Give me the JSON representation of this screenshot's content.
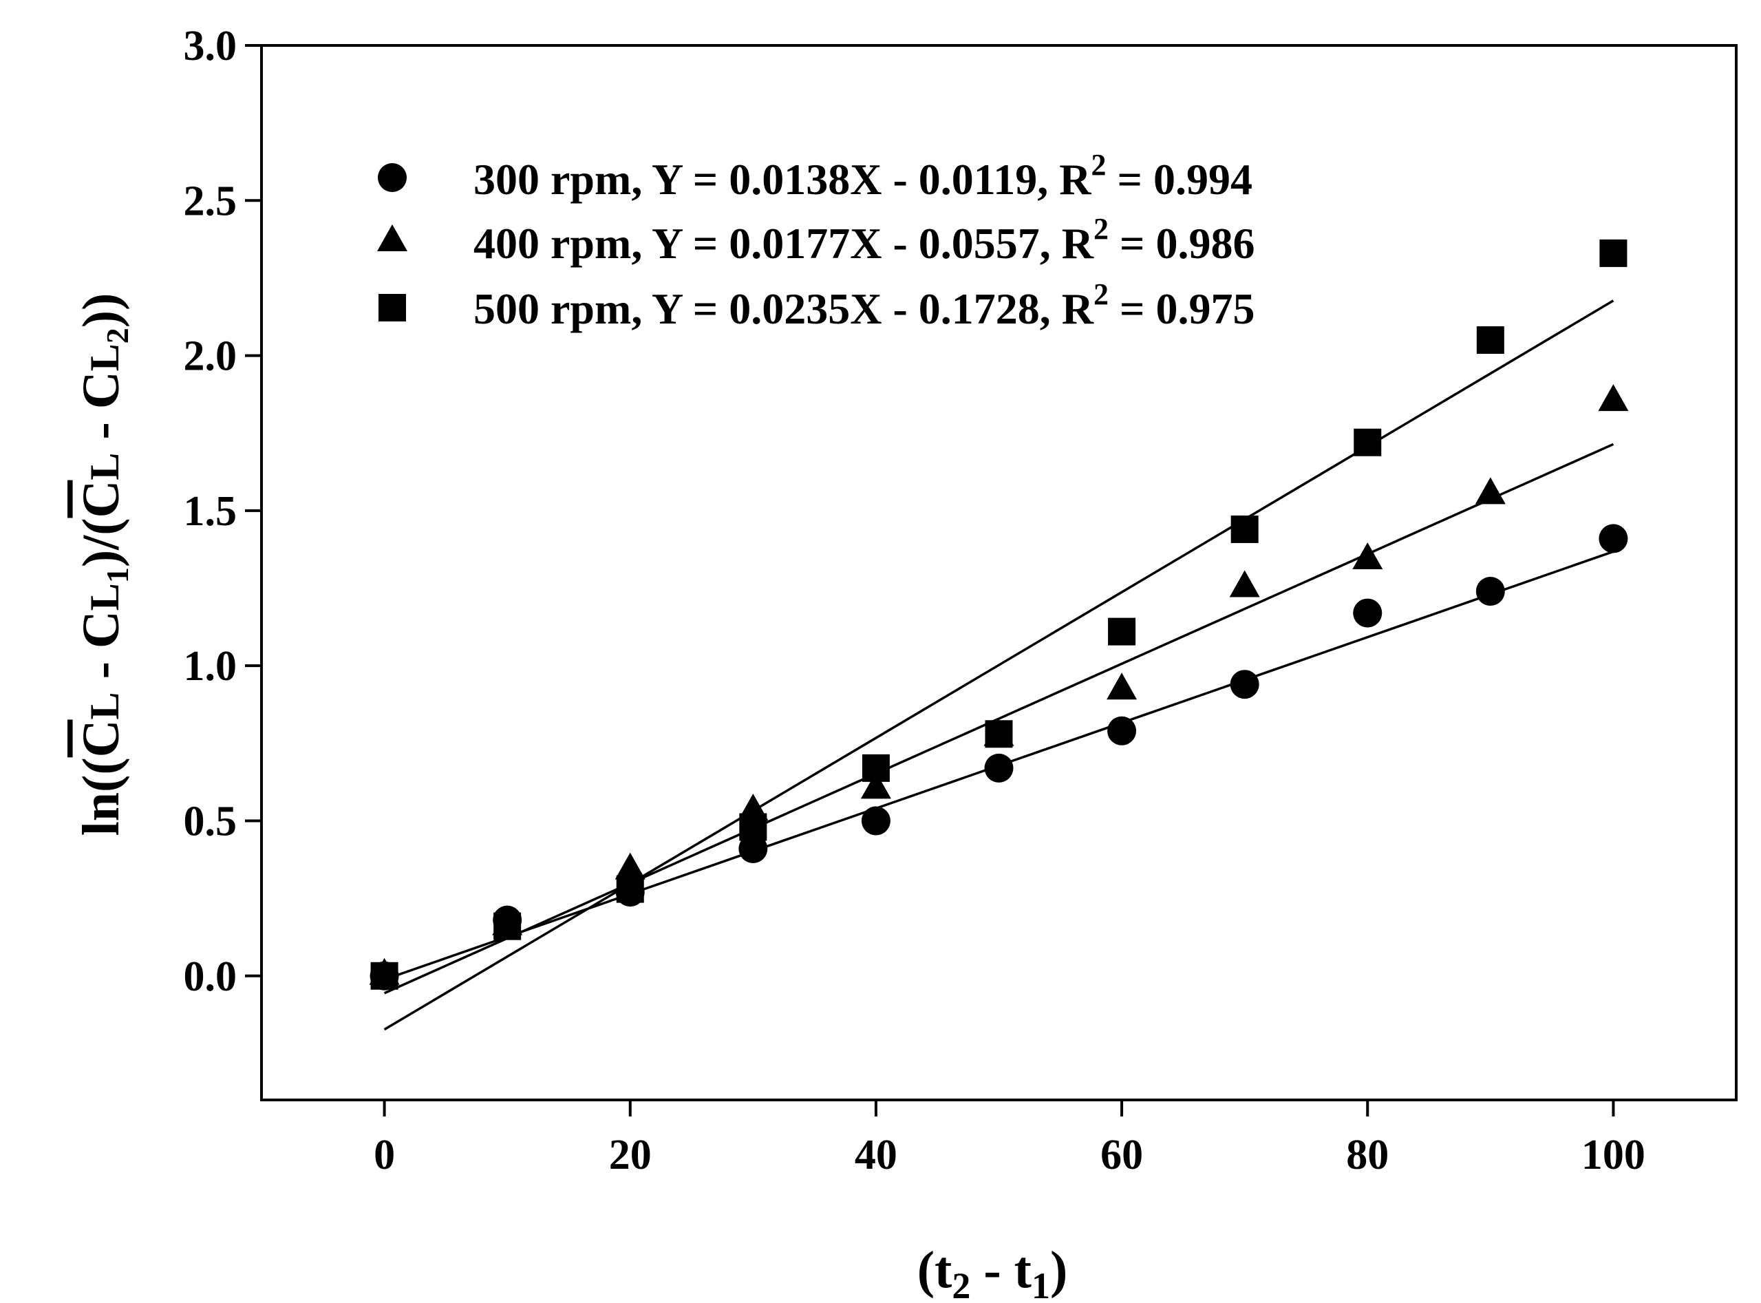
{
  "chart_data": {
    "type": "scatter",
    "title": "",
    "xlabel": {
      "main": "(t",
      "sub1": "2",
      "mid": " - t",
      "sub2": "1",
      "end": ")"
    },
    "ylabel": {
      "p1": "ln((",
      "c1": "C",
      "l1": "L",
      "p2": " - C",
      "l2": "L",
      "s1": "1",
      "p3": ")/(",
      "c2": "C",
      "l3": "L",
      "p4": " - C",
      "l4": "L",
      "s2": "2",
      "p5": "))"
    },
    "xlim": [
      -10,
      110
    ],
    "ylim": [
      -0.4,
      3.0
    ],
    "xticks": [
      0,
      20,
      40,
      60,
      80,
      100
    ],
    "xtick_labels": [
      "0",
      "20",
      "40",
      "60",
      "80",
      "100"
    ],
    "yticks": [
      0.0,
      0.5,
      1.0,
      1.5,
      2.0,
      2.5,
      3.0
    ],
    "ytick_labels": [
      "0.0",
      "0.5",
      "1.0",
      "1.5",
      "2.0",
      "2.5",
      "3.0"
    ],
    "legend_position": "top-left",
    "series": [
      {
        "name": "300 rpm",
        "marker": "circle",
        "legend": {
          "pre": "300 rpm, Y = 0.0138X - 0.0119, R",
          "sup": "2",
          "post": " = 0.994"
        },
        "x": [
          0,
          10,
          20,
          30,
          40,
          50,
          60,
          70,
          80,
          90,
          100
        ],
        "y": [
          0.0,
          0.18,
          0.27,
          0.41,
          0.5,
          0.67,
          0.79,
          0.94,
          1.17,
          1.24,
          1.41
        ],
        "fit": {
          "slope": 0.0138,
          "intercept": -0.0119
        }
      },
      {
        "name": "400 rpm",
        "marker": "triangle",
        "legend": {
          "pre": "400 rpm, Y = 0.0177X - 0.0557, R",
          "sup": "2",
          "post": " = 0.986"
        },
        "x": [
          0,
          10,
          20,
          30,
          40,
          50,
          60,
          70,
          80,
          90,
          100
        ],
        "y": [
          0.0,
          0.16,
          0.34,
          0.53,
          0.6,
          0.77,
          0.92,
          1.25,
          1.34,
          1.55,
          1.85
        ],
        "fit": {
          "slope": 0.0177,
          "intercept": -0.0557
        }
      },
      {
        "name": "500 rpm",
        "marker": "square",
        "legend": {
          "pre": "500 rpm, Y = 0.0235X - 0.1728, R",
          "sup": "2",
          "post": " = 0.975"
        },
        "x": [
          0,
          10,
          20,
          30,
          40,
          50,
          60,
          70,
          80,
          90,
          100
        ],
        "y": [
          0.0,
          0.16,
          0.28,
          0.48,
          0.67,
          0.78,
          1.11,
          1.44,
          1.72,
          2.05,
          2.33
        ],
        "fit": {
          "slope": 0.0235,
          "intercept": -0.1728
        }
      }
    ]
  }
}
